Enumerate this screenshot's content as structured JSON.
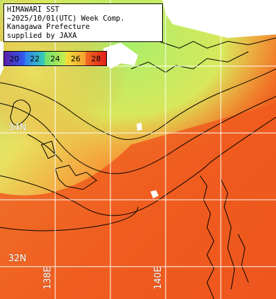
{
  "title_lines": [
    "HIMAWARI SST",
    "~2025/10/01(UTC) Week Comp.",
    "Kanagawa Prefecture",
    "supplied by JAXA"
  ],
  "colorbar": {
    "ticks": [
      "20",
      "22",
      "24",
      "26",
      "28"
    ],
    "colors": [
      "#6a2bb0",
      "#2e7cf0",
      "#9ee05a",
      "#f2d43a",
      "#ee4a1c"
    ]
  },
  "grid_labels": {
    "lat_34": "34N",
    "lat_32": "32N",
    "lon_138": "138E",
    "lon_140": "140E"
  },
  "colors": {
    "land": "#ffffff",
    "cold_water": "#c8f07a",
    "warm_water": "#f06a22",
    "hot_water": "#e83a12",
    "grid": "#ffffff",
    "contour": "#000000"
  }
}
